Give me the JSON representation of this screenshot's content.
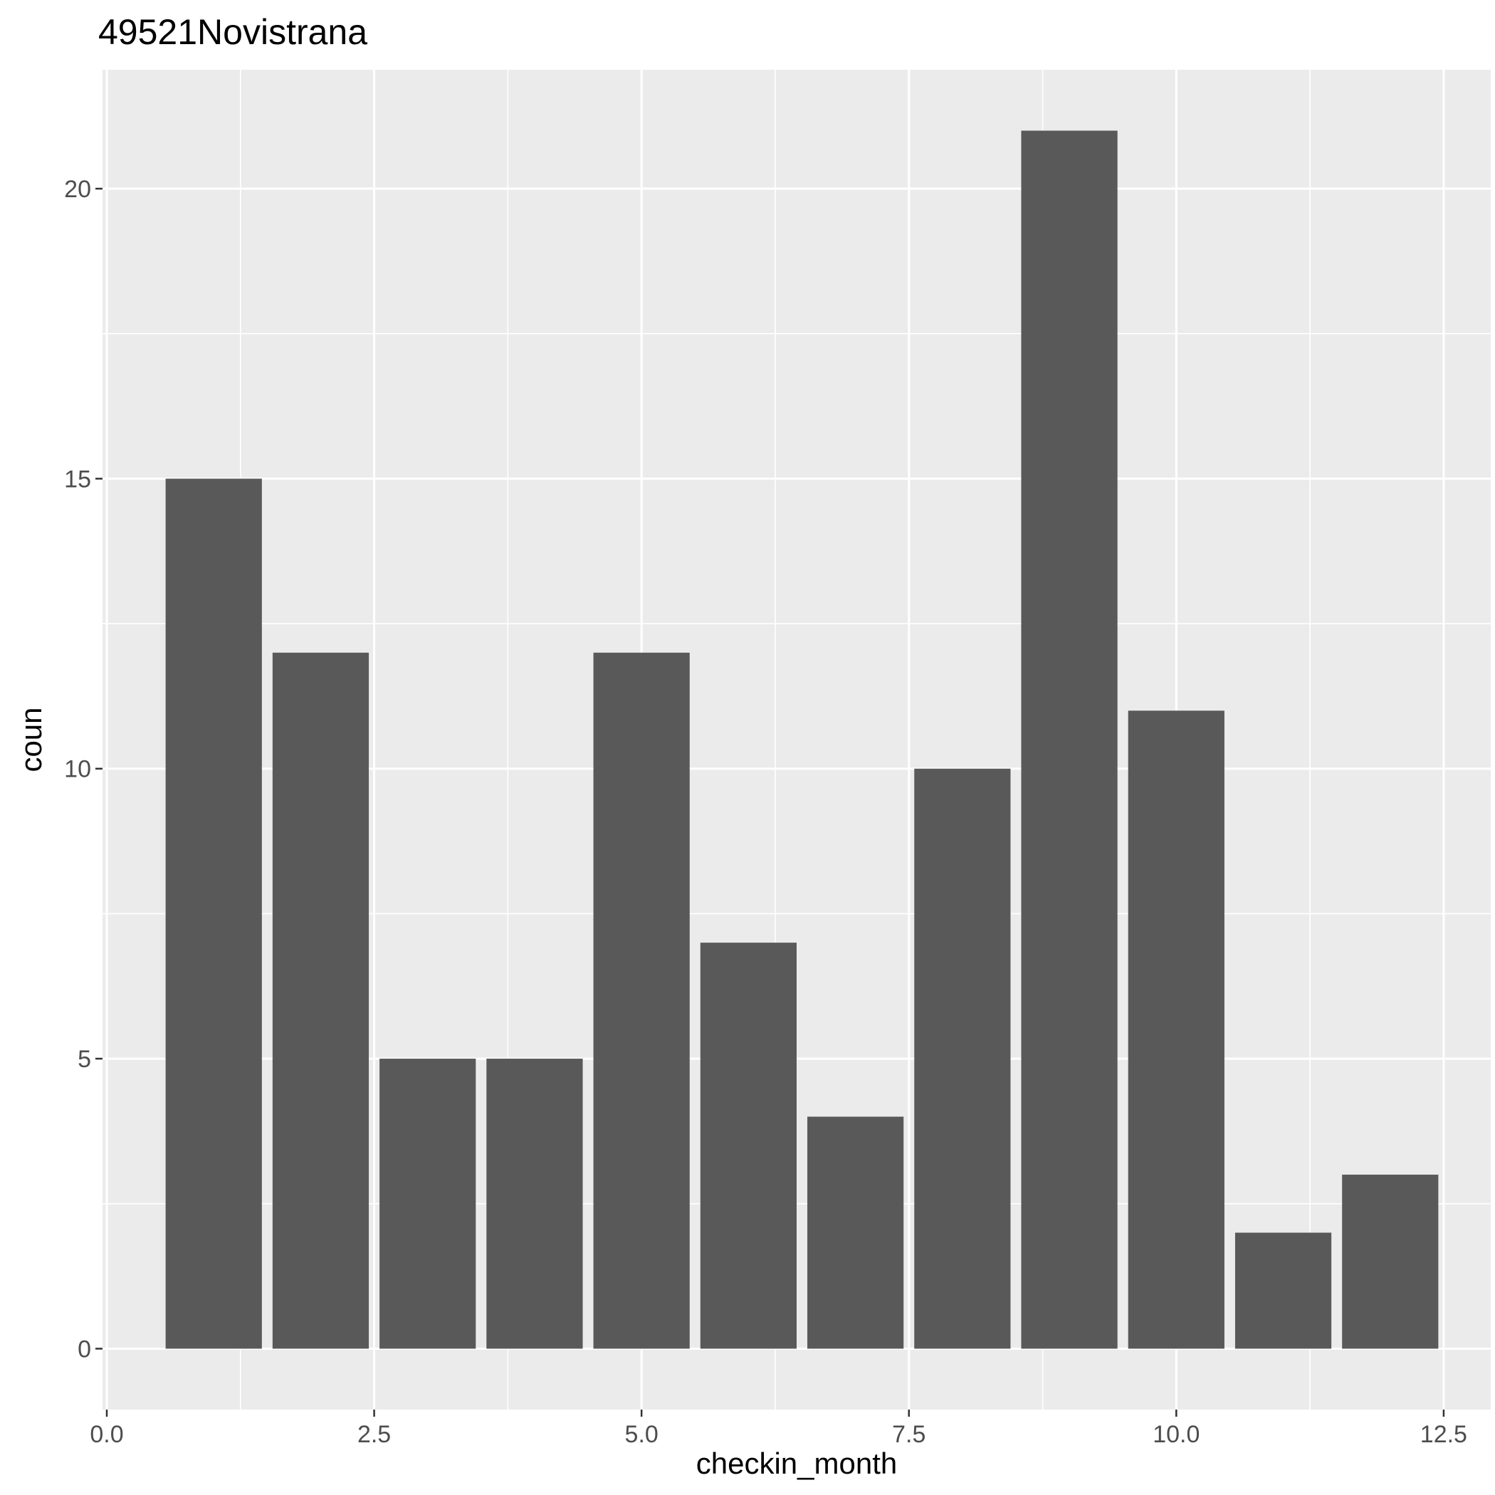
{
  "chart_data": {
    "type": "bar",
    "title": "49521Novistrana",
    "xlabel": "checkin_month",
    "ylabel": "coun",
    "x": [
      1,
      2,
      3,
      4,
      5,
      6,
      7,
      8,
      9,
      10,
      11,
      12
    ],
    "values": [
      15,
      12,
      5,
      5,
      12,
      7,
      4,
      10,
      21,
      11,
      2,
      3
    ],
    "bar_width": 0.9,
    "xlim": [
      -0.04,
      12.94
    ],
    "ylim": [
      -1.05,
      22.05
    ],
    "x_ticks": [
      0,
      2.5,
      5,
      7.5,
      10,
      12.5
    ],
    "x_tick_labels": [
      "0.0",
      "2.5",
      "5.0",
      "7.5",
      "10.0",
      "12.5"
    ],
    "y_ticks": [
      0,
      5,
      10,
      15,
      20
    ],
    "y_tick_labels": [
      "0",
      "5",
      "10",
      "15",
      "20"
    ],
    "grid": true,
    "legend": "none",
    "colors": {
      "bar": "#595959",
      "panel": "#ebebeb",
      "grid": "#ffffff",
      "tick_label": "#4d4d4d",
      "tick_mark": "#333333"
    }
  }
}
